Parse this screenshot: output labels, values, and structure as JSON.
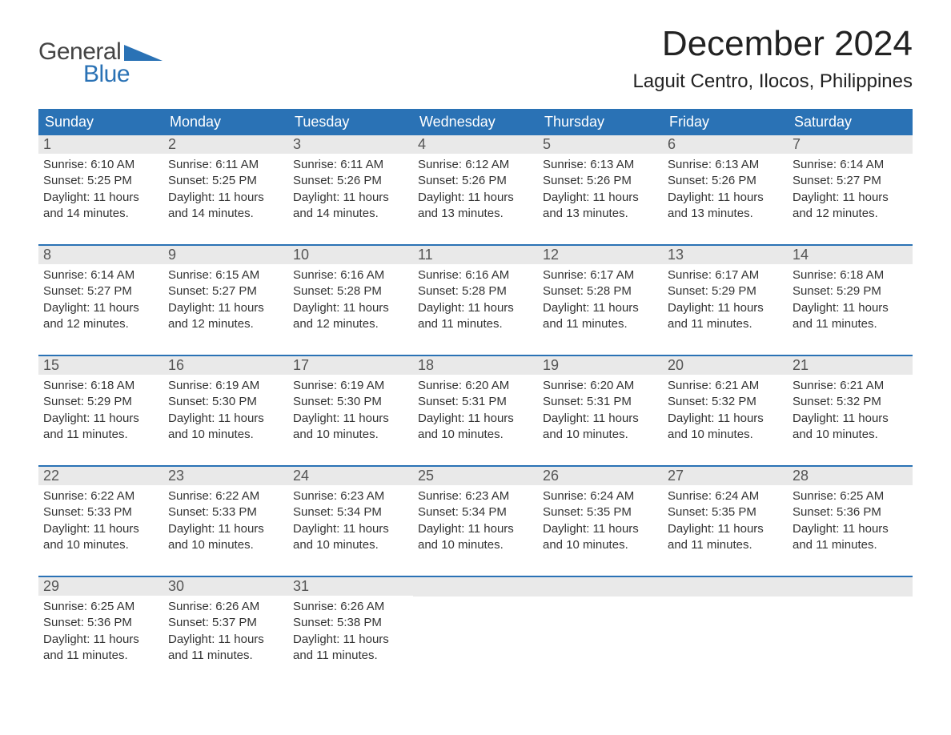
{
  "logo": {
    "word1": "General",
    "word2": "Blue"
  },
  "title": "December 2024",
  "location": "Laguit Centro, Ilocos, Philippines",
  "colors": {
    "brand_blue": "#2a72b5",
    "header_bg": "#2a72b5",
    "daynum_bg": "#e9e9e9",
    "text": "#333333",
    "bg": "#ffffff"
  },
  "fonts": {
    "title_size": 44,
    "location_size": 24,
    "dayheader_size": 18,
    "daynum_size": 18,
    "body_size": 15
  },
  "day_headers": [
    "Sunday",
    "Monday",
    "Tuesday",
    "Wednesday",
    "Thursday",
    "Friday",
    "Saturday"
  ],
  "weeks": [
    [
      {
        "num": "1",
        "sunrise": "Sunrise: 6:10 AM",
        "sunset": "Sunset: 5:25 PM",
        "daylight1": "Daylight: 11 hours",
        "daylight2": "and 14 minutes."
      },
      {
        "num": "2",
        "sunrise": "Sunrise: 6:11 AM",
        "sunset": "Sunset: 5:25 PM",
        "daylight1": "Daylight: 11 hours",
        "daylight2": "and 14 minutes."
      },
      {
        "num": "3",
        "sunrise": "Sunrise: 6:11 AM",
        "sunset": "Sunset: 5:26 PM",
        "daylight1": "Daylight: 11 hours",
        "daylight2": "and 14 minutes."
      },
      {
        "num": "4",
        "sunrise": "Sunrise: 6:12 AM",
        "sunset": "Sunset: 5:26 PM",
        "daylight1": "Daylight: 11 hours",
        "daylight2": "and 13 minutes."
      },
      {
        "num": "5",
        "sunrise": "Sunrise: 6:13 AM",
        "sunset": "Sunset: 5:26 PM",
        "daylight1": "Daylight: 11 hours",
        "daylight2": "and 13 minutes."
      },
      {
        "num": "6",
        "sunrise": "Sunrise: 6:13 AM",
        "sunset": "Sunset: 5:26 PM",
        "daylight1": "Daylight: 11 hours",
        "daylight2": "and 13 minutes."
      },
      {
        "num": "7",
        "sunrise": "Sunrise: 6:14 AM",
        "sunset": "Sunset: 5:27 PM",
        "daylight1": "Daylight: 11 hours",
        "daylight2": "and 12 minutes."
      }
    ],
    [
      {
        "num": "8",
        "sunrise": "Sunrise: 6:14 AM",
        "sunset": "Sunset: 5:27 PM",
        "daylight1": "Daylight: 11 hours",
        "daylight2": "and 12 minutes."
      },
      {
        "num": "9",
        "sunrise": "Sunrise: 6:15 AM",
        "sunset": "Sunset: 5:27 PM",
        "daylight1": "Daylight: 11 hours",
        "daylight2": "and 12 minutes."
      },
      {
        "num": "10",
        "sunrise": "Sunrise: 6:16 AM",
        "sunset": "Sunset: 5:28 PM",
        "daylight1": "Daylight: 11 hours",
        "daylight2": "and 12 minutes."
      },
      {
        "num": "11",
        "sunrise": "Sunrise: 6:16 AM",
        "sunset": "Sunset: 5:28 PM",
        "daylight1": "Daylight: 11 hours",
        "daylight2": "and 11 minutes."
      },
      {
        "num": "12",
        "sunrise": "Sunrise: 6:17 AM",
        "sunset": "Sunset: 5:28 PM",
        "daylight1": "Daylight: 11 hours",
        "daylight2": "and 11 minutes."
      },
      {
        "num": "13",
        "sunrise": "Sunrise: 6:17 AM",
        "sunset": "Sunset: 5:29 PM",
        "daylight1": "Daylight: 11 hours",
        "daylight2": "and 11 minutes."
      },
      {
        "num": "14",
        "sunrise": "Sunrise: 6:18 AM",
        "sunset": "Sunset: 5:29 PM",
        "daylight1": "Daylight: 11 hours",
        "daylight2": "and 11 minutes."
      }
    ],
    [
      {
        "num": "15",
        "sunrise": "Sunrise: 6:18 AM",
        "sunset": "Sunset: 5:29 PM",
        "daylight1": "Daylight: 11 hours",
        "daylight2": "and 11 minutes."
      },
      {
        "num": "16",
        "sunrise": "Sunrise: 6:19 AM",
        "sunset": "Sunset: 5:30 PM",
        "daylight1": "Daylight: 11 hours",
        "daylight2": "and 10 minutes."
      },
      {
        "num": "17",
        "sunrise": "Sunrise: 6:19 AM",
        "sunset": "Sunset: 5:30 PM",
        "daylight1": "Daylight: 11 hours",
        "daylight2": "and 10 minutes."
      },
      {
        "num": "18",
        "sunrise": "Sunrise: 6:20 AM",
        "sunset": "Sunset: 5:31 PM",
        "daylight1": "Daylight: 11 hours",
        "daylight2": "and 10 minutes."
      },
      {
        "num": "19",
        "sunrise": "Sunrise: 6:20 AM",
        "sunset": "Sunset: 5:31 PM",
        "daylight1": "Daylight: 11 hours",
        "daylight2": "and 10 minutes."
      },
      {
        "num": "20",
        "sunrise": "Sunrise: 6:21 AM",
        "sunset": "Sunset: 5:32 PM",
        "daylight1": "Daylight: 11 hours",
        "daylight2": "and 10 minutes."
      },
      {
        "num": "21",
        "sunrise": "Sunrise: 6:21 AM",
        "sunset": "Sunset: 5:32 PM",
        "daylight1": "Daylight: 11 hours",
        "daylight2": "and 10 minutes."
      }
    ],
    [
      {
        "num": "22",
        "sunrise": "Sunrise: 6:22 AM",
        "sunset": "Sunset: 5:33 PM",
        "daylight1": "Daylight: 11 hours",
        "daylight2": "and 10 minutes."
      },
      {
        "num": "23",
        "sunrise": "Sunrise: 6:22 AM",
        "sunset": "Sunset: 5:33 PM",
        "daylight1": "Daylight: 11 hours",
        "daylight2": "and 10 minutes."
      },
      {
        "num": "24",
        "sunrise": "Sunrise: 6:23 AM",
        "sunset": "Sunset: 5:34 PM",
        "daylight1": "Daylight: 11 hours",
        "daylight2": "and 10 minutes."
      },
      {
        "num": "25",
        "sunrise": "Sunrise: 6:23 AM",
        "sunset": "Sunset: 5:34 PM",
        "daylight1": "Daylight: 11 hours",
        "daylight2": "and 10 minutes."
      },
      {
        "num": "26",
        "sunrise": "Sunrise: 6:24 AM",
        "sunset": "Sunset: 5:35 PM",
        "daylight1": "Daylight: 11 hours",
        "daylight2": "and 10 minutes."
      },
      {
        "num": "27",
        "sunrise": "Sunrise: 6:24 AM",
        "sunset": "Sunset: 5:35 PM",
        "daylight1": "Daylight: 11 hours",
        "daylight2": "and 11 minutes."
      },
      {
        "num": "28",
        "sunrise": "Sunrise: 6:25 AM",
        "sunset": "Sunset: 5:36 PM",
        "daylight1": "Daylight: 11 hours",
        "daylight2": "and 11 minutes."
      }
    ],
    [
      {
        "num": "29",
        "sunrise": "Sunrise: 6:25 AM",
        "sunset": "Sunset: 5:36 PM",
        "daylight1": "Daylight: 11 hours",
        "daylight2": "and 11 minutes."
      },
      {
        "num": "30",
        "sunrise": "Sunrise: 6:26 AM",
        "sunset": "Sunset: 5:37 PM",
        "daylight1": "Daylight: 11 hours",
        "daylight2": "and 11 minutes."
      },
      {
        "num": "31",
        "sunrise": "Sunrise: 6:26 AM",
        "sunset": "Sunset: 5:38 PM",
        "daylight1": "Daylight: 11 hours",
        "daylight2": "and 11 minutes."
      },
      {
        "empty": true
      },
      {
        "empty": true
      },
      {
        "empty": true
      },
      {
        "empty": true
      }
    ]
  ]
}
